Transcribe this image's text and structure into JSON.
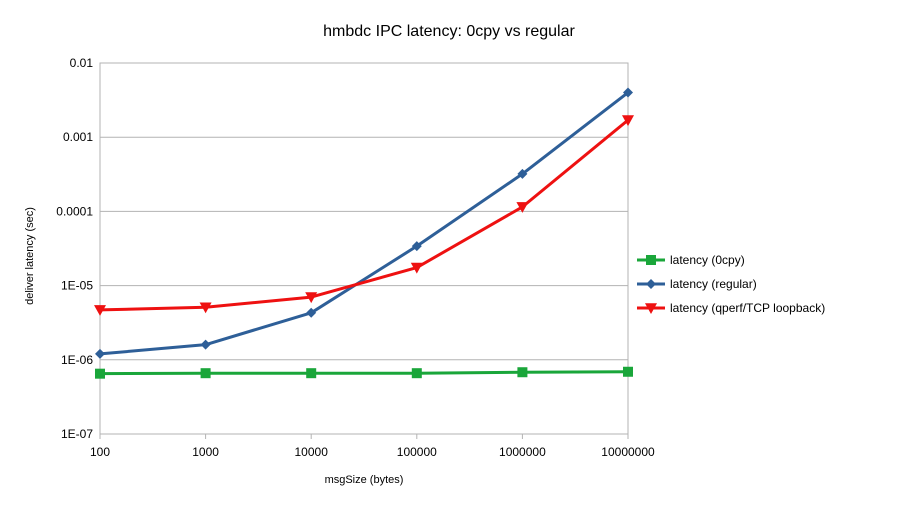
{
  "chart_data": {
    "type": "line",
    "title": "hmbdc IPC latency: 0cpy vs regular",
    "xlabel": "msgSize (bytes)",
    "ylabel": "deliver latency (sec)",
    "x_scale": "log",
    "y_scale": "log",
    "x": [
      100,
      1000,
      10000,
      100000,
      1000000,
      10000000
    ],
    "x_tick_labels": [
      "100",
      "1000",
      "10000",
      "100000",
      "1000000",
      "10000000"
    ],
    "y_ticks": [
      1e-07,
      1e-06,
      1e-05,
      0.0001,
      0.001,
      0.01
    ],
    "y_tick_labels": [
      "1E-07",
      "1E-06",
      "1E-05",
      "0.0001",
      "0.001",
      "0.01"
    ],
    "ylim": [
      1e-07,
      0.01
    ],
    "grid": "horizontal",
    "legend_position": "right",
    "series": [
      {
        "name": "latency (0cpy)",
        "color": "#1aa63a",
        "marker": "square",
        "values": [
          6.5e-07,
          6.6e-07,
          6.6e-07,
          6.6e-07,
          6.8e-07,
          6.9e-07
        ]
      },
      {
        "name": "latency (regular)",
        "color": "#2e5f98",
        "marker": "diamond",
        "values": [
          1.2e-06,
          1.6e-06,
          4.3e-06,
          3.4e-05,
          0.00032,
          0.004
        ]
      },
      {
        "name": "latency (qperf/TCP loopback)",
        "color": "#ee1111",
        "marker": "triangle-down",
        "values": [
          4.7e-06,
          5.1e-06,
          7e-06,
          1.75e-05,
          0.000115,
          0.0017
        ]
      }
    ]
  }
}
